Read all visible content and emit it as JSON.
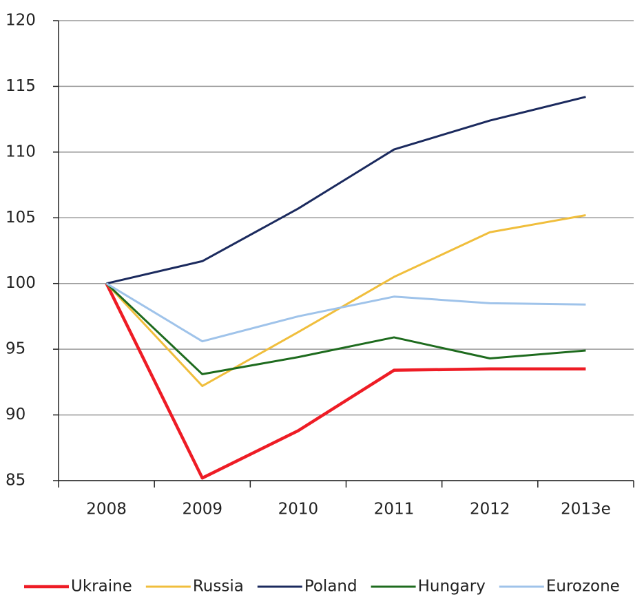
{
  "chart_data": {
    "type": "line",
    "categories": [
      "2008",
      "2009",
      "2010",
      "2011",
      "2012",
      "2013e"
    ],
    "series": [
      {
        "name": "Ukraine",
        "color": "#ee1c25",
        "values": [
          100,
          85.2,
          88.8,
          93.4,
          93.5,
          93.5
        ]
      },
      {
        "name": "Russia",
        "color": "#f0be3c",
        "values": [
          100,
          92.2,
          96.3,
          100.5,
          103.9,
          105.2
        ]
      },
      {
        "name": "Poland",
        "color": "#1b2a5e",
        "values": [
          100,
          101.7,
          105.7,
          110.2,
          112.4,
          114.2
        ]
      },
      {
        "name": "Hungary",
        "color": "#1e6b1e",
        "values": [
          100,
          93.1,
          94.4,
          95.9,
          94.3,
          94.9
        ]
      },
      {
        "name": "Eurozone",
        "color": "#9fc3ea",
        "values": [
          100,
          95.6,
          97.5,
          99.0,
          98.5,
          98.4
        ]
      }
    ],
    "ylim": [
      85,
      120
    ],
    "yticks": [
      85,
      90,
      95,
      100,
      105,
      110,
      115,
      120
    ],
    "grid": true,
    "legend": "bottom"
  }
}
